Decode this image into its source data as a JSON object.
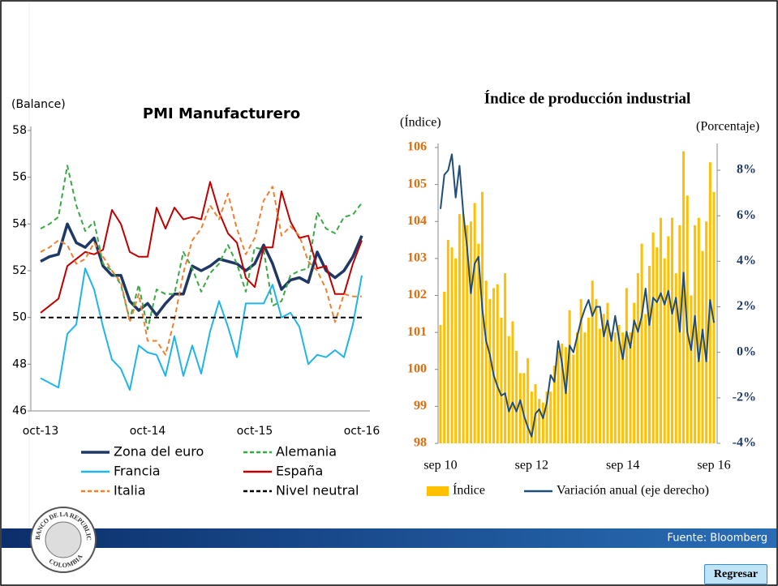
{
  "chart_data": [
    {
      "type": "line",
      "title": "PMI Manufacturero",
      "y_label": "(Balance)",
      "categories": [
        "oct-13",
        null,
        null,
        null,
        null,
        null,
        null,
        null,
        null,
        null,
        null,
        null,
        "oct-14",
        null,
        null,
        null,
        null,
        null,
        null,
        null,
        null,
        null,
        null,
        null,
        "oct-15",
        null,
        null,
        null,
        null,
        null,
        null,
        null,
        null,
        null,
        null,
        null,
        "oct-16"
      ],
      "ylim": [
        46,
        58
      ],
      "yticks": [
        46,
        48,
        50,
        52,
        54,
        56,
        58
      ],
      "grid": false,
      "series": [
        {
          "name": "Zona del euro",
          "color": "#1f3864",
          "line_style": "solid",
          "values": [
            52.4,
            52.6,
            52.7,
            54.0,
            53.2,
            53.0,
            53.4,
            52.2,
            51.8,
            51.8,
            50.7,
            50.3,
            50.6,
            50.1,
            50.6,
            51.0,
            51.0,
            52.2,
            52.0,
            52.2,
            52.5,
            52.4,
            52.3,
            52.0,
            52.3,
            53.1,
            52.3,
            51.2,
            51.6,
            51.7,
            51.5,
            52.8,
            52.0,
            51.7,
            52.0,
            52.6,
            53.5
          ]
        },
        {
          "name": "Alemania",
          "color": "#3aa845",
          "line_style": "dashed",
          "values": [
            53.8,
            54.0,
            54.3,
            56.5,
            54.8,
            53.7,
            54.1,
            52.3,
            52.0,
            51.4,
            49.9,
            51.4,
            49.5,
            51.2,
            51.0,
            51.0,
            52.8,
            52.1,
            51.1,
            51.9,
            52.3,
            53.1,
            52.3,
            51.1,
            53.0,
            52.9,
            50.5,
            50.7,
            51.8,
            52.0,
            52.1,
            54.5,
            53.8,
            53.6,
            54.3,
            54.4,
            54.9
          ]
        },
        {
          "name": "Francia",
          "color": "#1fb4ea",
          "line_style": "solid",
          "values": [
            47.4,
            47.2,
            47.0,
            49.3,
            49.7,
            52.1,
            51.2,
            49.6,
            48.2,
            47.8,
            46.9,
            48.8,
            48.5,
            48.4,
            47.5,
            49.2,
            47.5,
            48.8,
            47.6,
            49.4,
            50.7,
            49.6,
            48.3,
            50.6,
            50.6,
            50.6,
            51.4,
            50.0,
            50.2,
            49.6,
            48.0,
            48.4,
            48.3,
            48.6,
            48.3,
            49.7,
            51.8
          ]
        },
        {
          "name": "España",
          "color": "#c00000",
          "line_style": "solid",
          "values": [
            50.2,
            50.5,
            50.8,
            52.2,
            52.5,
            52.8,
            52.7,
            52.9,
            54.6,
            54.0,
            52.8,
            52.6,
            52.6,
            54.7,
            53.8,
            54.7,
            54.2,
            54.3,
            54.2,
            55.8,
            54.5,
            53.6,
            53.2,
            51.7,
            51.3,
            53.0,
            53.0,
            55.4,
            54.1,
            53.4,
            53.5,
            52.1,
            52.2,
            51.0,
            51.0,
            52.3,
            53.3
          ]
        },
        {
          "name": "Italia",
          "color": "#f08030",
          "line_style": "dashed",
          "values": [
            52.8,
            53.0,
            53.3,
            53.1,
            52.3,
            52.5,
            53.2,
            52.6,
            52.0,
            51.5,
            49.8,
            51.0,
            49.0,
            49.0,
            48.4,
            49.9,
            51.9,
            53.3,
            53.8,
            54.8,
            54.2,
            55.3,
            53.8,
            52.7,
            53.4,
            55.0,
            55.6,
            53.5,
            53.9,
            53.5,
            52.4,
            52.0,
            51.2,
            49.8,
            51.0,
            50.9,
            50.9
          ]
        },
        {
          "name": "Nivel neutral",
          "color": "#000000",
          "line_style": "dashed",
          "values": [
            50,
            50,
            50,
            50,
            50,
            50,
            50,
            50,
            50,
            50,
            50,
            50,
            50,
            50,
            50,
            50,
            50,
            50,
            50,
            50,
            50,
            50,
            50,
            50,
            50,
            50,
            50,
            50,
            50,
            50,
            50,
            50,
            50,
            50,
            50,
            50,
            50
          ]
        }
      ]
    },
    {
      "type": "bar",
      "title": "Índice de producción industrial",
      "y_label": "(Índice)",
      "y2_label": "(Porcentaje)",
      "categories": [
        "sep 10",
        null,
        null,
        null,
        null,
        null,
        null,
        null,
        null,
        null,
        null,
        null,
        null,
        null,
        null,
        null,
        null,
        null,
        null,
        null,
        null,
        null,
        null,
        null,
        "sep 12",
        null,
        null,
        null,
        null,
        null,
        null,
        null,
        null,
        null,
        null,
        null,
        null,
        null,
        null,
        null,
        null,
        null,
        null,
        null,
        null,
        null,
        null,
        null,
        "sep 14",
        null,
        null,
        null,
        null,
        null,
        null,
        null,
        null,
        null,
        null,
        null,
        null,
        null,
        null,
        null,
        null,
        null,
        null,
        null,
        null,
        null,
        null,
        null,
        "sep 16"
      ],
      "ylim": [
        98,
        106
      ],
      "yticks": [
        98,
        99,
        100,
        101,
        102,
        103,
        104,
        105,
        106
      ],
      "y2lim": [
        -4,
        9
      ],
      "y2ticks": [
        {
          "value": -4,
          "label": "-4%"
        },
        {
          "value": -2,
          "label": "-2%"
        },
        {
          "value": 0,
          "label": "0%"
        },
        {
          "value": 2,
          "label": "2%"
        },
        {
          "value": 4,
          "label": "4%"
        },
        {
          "value": 6,
          "label": "6%"
        },
        {
          "value": 8,
          "label": "8%"
        }
      ],
      "grid": false,
      "series": [
        {
          "name": "Índice",
          "type": "bar",
          "color": "#ffc000",
          "values": [
            101.2,
            102.1,
            103.5,
            103.3,
            103.0,
            104.2,
            104.2,
            103.9,
            104.0,
            104.5,
            103.4,
            104.8,
            102.4,
            101.9,
            102.2,
            102.3,
            101.4,
            102.6,
            100.9,
            101.3,
            100.5,
            99.9,
            99.9,
            100.3,
            99.4,
            99.6,
            99.2,
            99.1,
            99.4,
            99.4,
            100.1,
            100.5,
            100.7,
            100.6,
            101.6,
            100.4,
            101.0,
            101.9,
            101.0,
            101.4,
            102.4,
            101.9,
            101.1,
            101.5,
            101.8,
            101.0,
            101.0,
            101.2,
            101.0,
            102.2,
            101.0,
            101.8,
            102.6,
            103.4,
            101.5,
            102.8,
            103.7,
            103.3,
            104.1,
            103.0,
            103.6,
            104.1,
            102.6,
            103.9,
            105.9,
            104.7,
            102.0,
            103.9,
            104.1,
            103.2,
            104.0,
            105.6,
            104.8
          ]
        },
        {
          "name": "Variación anual (eje derecho)",
          "type": "line",
          "axis": "y2",
          "color": "#1f4e79",
          "values": [
            6.3,
            7.8,
            8.0,
            8.7,
            6.8,
            8.2,
            6.1,
            4.6,
            2.6,
            3.9,
            4.2,
            1.9,
            0.5,
            -0.1,
            -1.0,
            -1.5,
            -1.9,
            -1.8,
            -2.6,
            -2.2,
            -2.6,
            -2.1,
            -2.8,
            -3.3,
            -3.7,
            -2.7,
            -2.5,
            -2.9,
            -2.2,
            -1.0,
            -1.3,
            0.5,
            -0.5,
            -1.8,
            0.3,
            0.0,
            0.7,
            1.4,
            1.9,
            2.3,
            1.6,
            2.0,
            2.0,
            0.7,
            1.4,
            0.5,
            1.6,
            0.6,
            -0.3,
            0.9,
            0.2,
            1.4,
            0.9,
            1.6,
            2.8,
            1.2,
            2.4,
            2.2,
            2.6,
            2.1,
            2.7,
            1.7,
            2.4,
            0.9,
            3.5,
            0.9,
            0.1,
            1.6,
            -0.4,
            1.0,
            -0.4,
            2.3,
            1.3
          ]
        }
      ]
    }
  ],
  "page": {
    "source": "Fuente: Bloomberg",
    "button": "Regresar",
    "logo_top": "BANCO DE LA REPUBLICA",
    "logo_bottom": "COLOMBIA"
  }
}
